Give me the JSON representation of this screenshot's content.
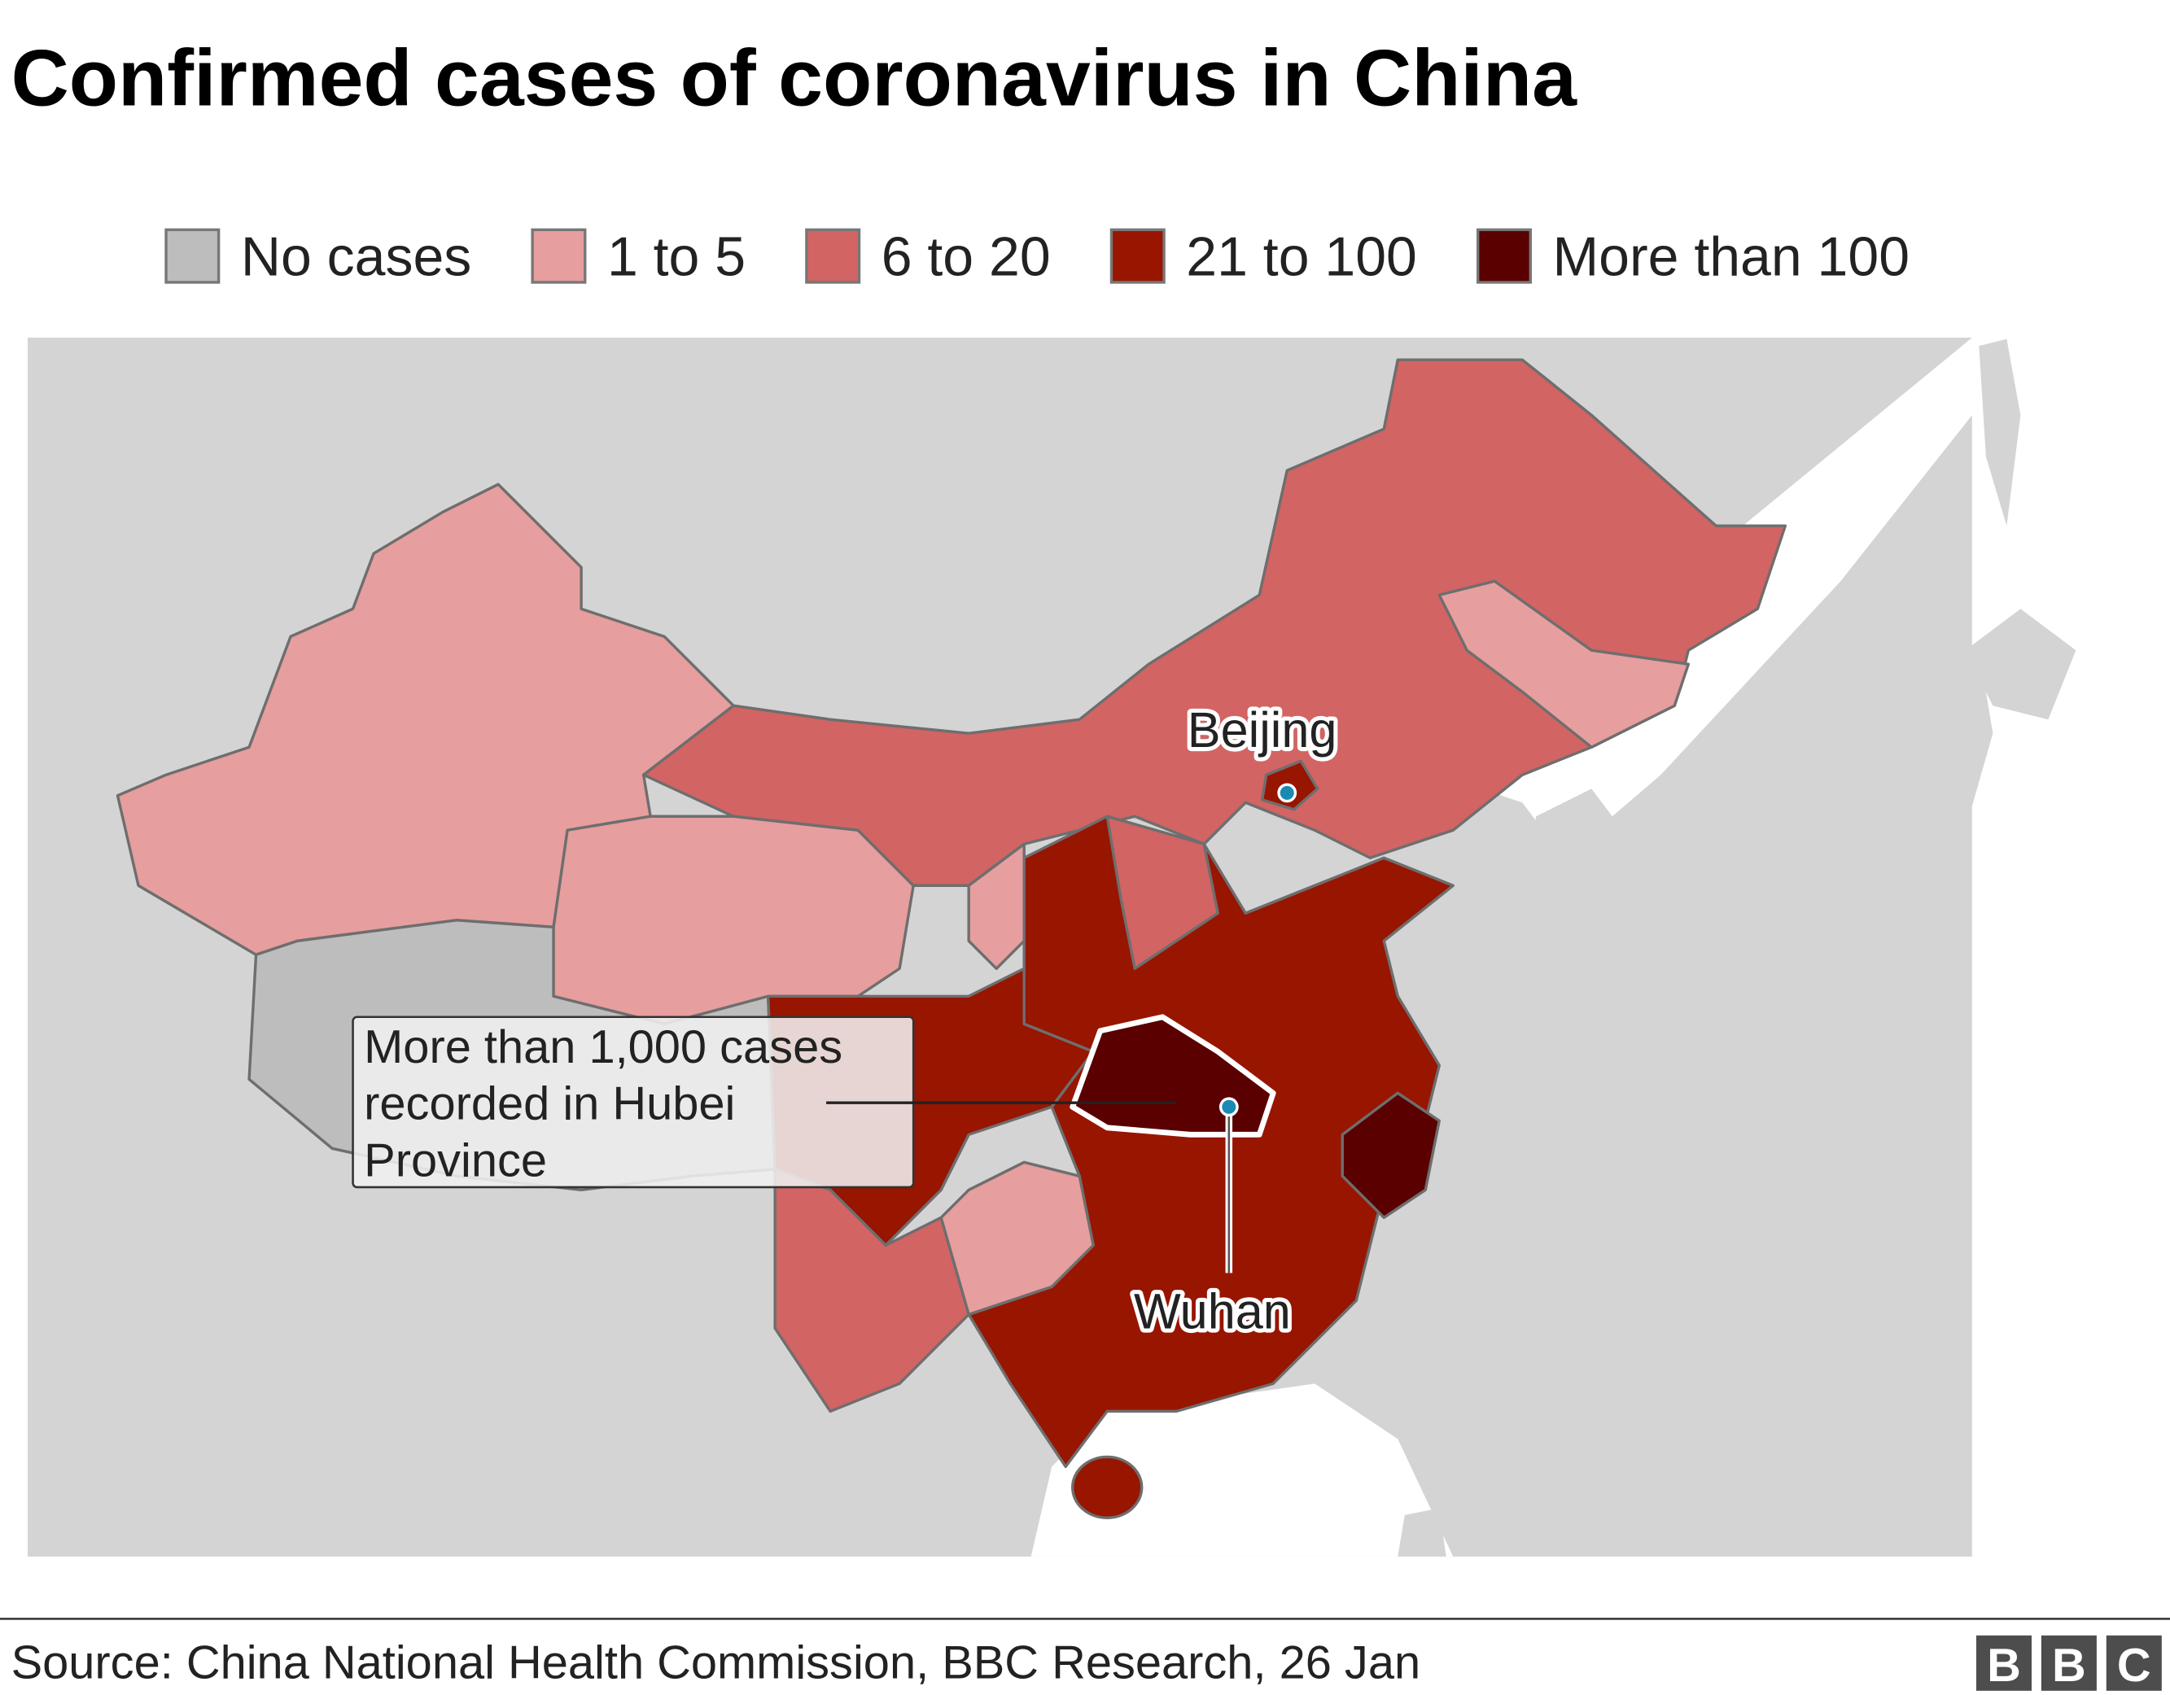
{
  "title": "Confirmed cases of coronavirus in China",
  "legend": [
    {
      "label": "No cases",
      "color": "#bdbdbd"
    },
    {
      "label": "1 to 5",
      "color": "#e79e9e"
    },
    {
      "label": "6 to 20",
      "color": "#d26463"
    },
    {
      "label": "21 to 100",
      "color": "#981500"
    },
    {
      "label": "More than 100",
      "color": "#5a0000"
    }
  ],
  "map_labels": {
    "beijing": "Beijing",
    "wuhan": "Wuhan"
  },
  "annotation": [
    "More than 1,000 cases",
    "recorded in Hubei",
    "Province"
  ],
  "source": "Source: China National Health Commission, BBC Research, 26 Jan",
  "logo": [
    "B",
    "B",
    "C"
  ]
}
